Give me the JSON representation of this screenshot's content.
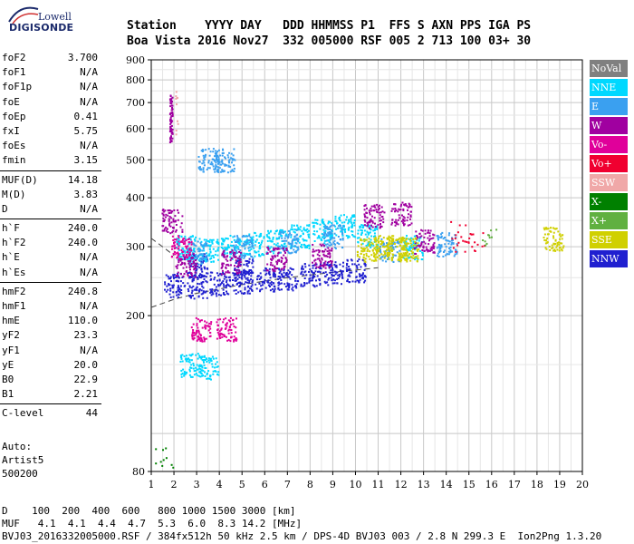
{
  "logo": {
    "line1": "Lowell",
    "line2": "DIGISONDE"
  },
  "header": {
    "line1": "Station    YYYY DAY   DDD HHMMSS P1  FFS S AXN PPS IGA PS",
    "line2": "Boa Vista 2016 Nov27  332 005000 RSF 005 2 713 100 03+ 30"
  },
  "params": [
    [
      {
        "k": "foF2",
        "v": "3.700"
      },
      {
        "k": "foF1",
        "v": "N/A"
      },
      {
        "k": "foF1p",
        "v": "N/A"
      },
      {
        "k": "foE",
        "v": "N/A"
      },
      {
        "k": "foEp",
        "v": "0.41"
      },
      {
        "k": "fxI",
        "v": "5.75"
      },
      {
        "k": "foEs",
        "v": "N/A"
      },
      {
        "k": "fmin",
        "v": "3.15"
      }
    ],
    [
      {
        "k": "MUF(D)",
        "v": "14.18"
      },
      {
        "k": "M(D)",
        "v": "3.83"
      },
      {
        "k": "D",
        "v": "N/A"
      }
    ],
    [
      {
        "k": "h`F",
        "v": "240.0"
      },
      {
        "k": "h`F2",
        "v": "240.0"
      },
      {
        "k": "h`E",
        "v": "N/A"
      },
      {
        "k": "h`Es",
        "v": "N/A"
      }
    ],
    [
      {
        "k": "hmF2",
        "v": "240.8"
      },
      {
        "k": "hmF1",
        "v": "N/A"
      },
      {
        "k": "hmE",
        "v": "110.0"
      },
      {
        "k": "yF2",
        "v": "23.3"
      },
      {
        "k": "yF1",
        "v": "N/A"
      },
      {
        "k": "yE",
        "v": "20.0"
      },
      {
        "k": "B0",
        "v": "22.9"
      },
      {
        "k": "B1",
        "v": "2.21"
      }
    ],
    [
      {
        "k": "C-level",
        "v": "44"
      }
    ]
  ],
  "auto": {
    "l1": "Auto:",
    "l2": "Artist5",
    "l3": "500200"
  },
  "footer": {
    "l1": "D    100  200  400  600   800 1000 1500 3000 [km]",
    "l2": "MUF   4.1  4.1  4.4  4.7  5.3  6.0  8.3 14.2 [MHz]",
    "l3": "BVJ03_2016332005000.RSF / 384fx512h 50 kHz 2.5 km / DPS-4D BVJ03 003 / 2.8 N 299.3 E  Ion2Png 1.3.20"
  },
  "legend": [
    {
      "label": "NoVal",
      "color": "#808080"
    },
    {
      "label": "NNE",
      "color": "#00d8ff"
    },
    {
      "label": "E",
      "color": "#3aa0f0"
    },
    {
      "label": "W",
      "color": "#a000a0"
    },
    {
      "label": "Vo-",
      "color": "#e0009a"
    },
    {
      "label": "Vo+",
      "color": "#f00030"
    },
    {
      "label": "SSW",
      "color": "#f0a8a8"
    },
    {
      "label": "X-",
      "color": "#008000"
    },
    {
      "label": "X+",
      "color": "#60b040"
    },
    {
      "label": "SSE",
      "color": "#d0d000"
    },
    {
      "label": "NNW",
      "color": "#2020d0"
    }
  ],
  "chart_data": {
    "type": "scatter",
    "title": "",
    "xlabel": "",
    "ylabel": "",
    "xlim": [
      1,
      20
    ],
    "ylim": [
      80,
      900
    ],
    "yscale": "log",
    "xticks": [
      1,
      2,
      3,
      4,
      5,
      6,
      7,
      8,
      9,
      10,
      11,
      12,
      13,
      14,
      15,
      16,
      17,
      18,
      19,
      20
    ],
    "yticks": [
      80,
      200,
      300,
      400,
      500,
      600,
      700,
      800,
      900
    ],
    "grid": true,
    "legend_position": "right",
    "series": [
      {
        "name": "NNW",
        "clusters": [
          [
            2,
            240
          ],
          [
            3,
            238
          ],
          [
            4,
            242
          ],
          [
            5,
            245
          ],
          [
            6,
            248
          ],
          [
            7,
            250
          ],
          [
            8,
            255
          ],
          [
            9,
            258
          ],
          [
            10,
            262
          ],
          [
            3,
            270
          ],
          [
            5,
            265
          ]
        ]
      },
      {
        "name": "NNE",
        "clusters": [
          [
            2.5,
            300
          ],
          [
            3.5,
            295
          ],
          [
            4.5,
            300
          ],
          [
            5.5,
            305
          ],
          [
            6.5,
            310
          ],
          [
            7.5,
            320
          ],
          [
            8.5,
            330
          ],
          [
            9.5,
            340
          ],
          [
            10.5,
            320
          ],
          [
            12.5,
            300
          ],
          [
            2.7,
            150
          ],
          [
            3.5,
            148
          ]
        ]
      },
      {
        "name": "E",
        "clusters": [
          [
            3,
            290
          ],
          [
            5,
            300
          ],
          [
            7,
            310
          ],
          [
            9,
            320
          ],
          [
            14,
            305
          ],
          [
            11.5,
            295
          ],
          [
            3.5,
            500
          ],
          [
            4.2,
            500
          ]
        ]
      },
      {
        "name": "W",
        "clusters": [
          [
            1.85,
            640
          ],
          [
            2.5,
            270
          ],
          [
            4.5,
            275
          ],
          [
            6.5,
            280
          ],
          [
            8.5,
            285
          ],
          [
            10.8,
            360
          ],
          [
            12,
            365
          ],
          [
            13,
            310
          ],
          [
            1.9,
            350
          ]
        ]
      },
      {
        "name": "SSE",
        "clusters": [
          [
            10.5,
            295
          ],
          [
            11.2,
            300
          ],
          [
            11.8,
            298
          ],
          [
            12.3,
            296
          ],
          [
            18.7,
            315
          ]
        ]
      },
      {
        "name": "Vo+",
        "clusters": [
          [
            14.5,
            310
          ],
          [
            15.3,
            305
          ],
          [
            14.6,
            330
          ]
        ]
      },
      {
        "name": "SSW",
        "clusters": [
          [
            2.1,
            660
          ]
        ]
      },
      {
        "name": "X+",
        "clusters": [
          [
            15.8,
            312
          ]
        ]
      },
      {
        "name": "Vo-",
        "clusters": [
          [
            2.3,
            300
          ],
          [
            3.2,
            185
          ],
          [
            4.3,
            185
          ]
        ]
      },
      {
        "name": "X-",
        "clusters": [
          [
            1.6,
            88
          ]
        ]
      }
    ],
    "reference_curves": [
      {
        "points": [
          [
            1,
            210
          ],
          [
            2,
            220
          ],
          [
            3,
            228
          ],
          [
            5,
            240
          ],
          [
            7,
            250
          ],
          [
            9,
            258
          ],
          [
            11,
            265
          ]
        ]
      },
      {
        "points": [
          [
            1,
            315
          ],
          [
            1.5,
            300
          ],
          [
            2,
            285
          ]
        ]
      }
    ]
  }
}
